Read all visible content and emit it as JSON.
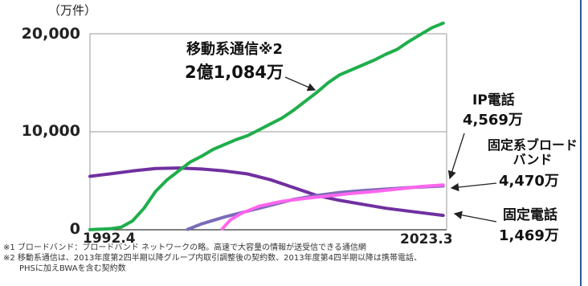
{
  "chart_data": {
    "type": "line",
    "unit_label": "（万件）",
    "y_ticks": [
      "20,000",
      "10,000",
      "0"
    ],
    "x_ticks": [
      "1992.4",
      "2023.3"
    ],
    "xlim": [
      1992.3,
      2023.3
    ],
    "ylim": [
      0,
      20000
    ],
    "grid": true,
    "series": [
      {
        "name": "移動系通信※2",
        "value_label": "2億1,084万",
        "color": "#1fae4b",
        "points": [
          [
            1992.3,
            10
          ],
          [
            1993,
            50
          ],
          [
            1994,
            100
          ],
          [
            1995,
            250
          ],
          [
            1996,
            900
          ],
          [
            1997,
            2200
          ],
          [
            1998,
            3900
          ],
          [
            1999,
            5100
          ],
          [
            2000,
            6000
          ],
          [
            2001,
            6900
          ],
          [
            2002,
            7500
          ],
          [
            2003,
            8200
          ],
          [
            2004,
            8700
          ],
          [
            2005,
            9200
          ],
          [
            2006,
            9600
          ],
          [
            2007,
            10200
          ],
          [
            2008,
            10800
          ],
          [
            2009,
            11400
          ],
          [
            2010,
            12200
          ],
          [
            2011,
            13100
          ],
          [
            2012,
            14000
          ],
          [
            2013,
            15000
          ],
          [
            2014,
            15800
          ],
          [
            2015,
            16300
          ],
          [
            2016,
            16800
          ],
          [
            2017,
            17300
          ],
          [
            2018,
            17900
          ],
          [
            2019,
            18400
          ],
          [
            2020,
            19200
          ],
          [
            2021,
            19900
          ],
          [
            2022,
            20600
          ],
          [
            2023,
            21084
          ]
        ]
      },
      {
        "name": "IP電話",
        "value_label": "4,569万",
        "color": "#ff66ee",
        "points": [
          [
            2003.8,
            100
          ],
          [
            2004.5,
            1000
          ],
          [
            2005.5,
            1700
          ],
          [
            2007,
            2400
          ],
          [
            2009,
            2900
          ],
          [
            2011,
            3200
          ],
          [
            2013,
            3450
          ],
          [
            2015,
            3700
          ],
          [
            2017,
            3900
          ],
          [
            2019,
            4150
          ],
          [
            2021,
            4400
          ],
          [
            2023,
            4569
          ]
        ]
      },
      {
        "name": "固定系ブロードバンド",
        "value_label": "4,470万",
        "color": "#7a6bb8",
        "points": [
          [
            2000.8,
            40
          ],
          [
            2002,
            600
          ],
          [
            2004,
            1300
          ],
          [
            2006,
            1900
          ],
          [
            2008,
            2500
          ],
          [
            2010,
            3100
          ],
          [
            2012,
            3500
          ],
          [
            2014,
            3800
          ],
          [
            2016,
            4000
          ],
          [
            2018,
            4150
          ],
          [
            2020,
            4300
          ],
          [
            2023,
            4470
          ]
        ]
      },
      {
        "name": "固定電話",
        "value_label": "1,469万",
        "color": "#7030a0",
        "points": [
          [
            1992.3,
            5450
          ],
          [
            1994,
            5700
          ],
          [
            1996,
            6000
          ],
          [
            1998,
            6250
          ],
          [
            2000,
            6300
          ],
          [
            2002,
            6200
          ],
          [
            2004,
            6000
          ],
          [
            2006,
            5700
          ],
          [
            2008,
            5100
          ],
          [
            2010,
            4300
          ],
          [
            2012,
            3500
          ],
          [
            2014,
            3000
          ],
          [
            2016,
            2600
          ],
          [
            2018,
            2200
          ],
          [
            2020,
            1900
          ],
          [
            2023,
            1469
          ]
        ]
      }
    ]
  },
  "notes": [
    "※1 ブロードバンド：ブロードバンド ネットワークの略。高速で大容量の情報が送受信できる通信網",
    "※2 移動系通信は、2013年度第2四半期以降グループ内取引調整後の契約数、2013年度第4四半期以降は携帯電話、",
    "　　PHSに加えBWAを含む契約数"
  ],
  "colors": {
    "grid": "#999999",
    "axis": "#333333",
    "frame_edge": "#2f5597"
  }
}
